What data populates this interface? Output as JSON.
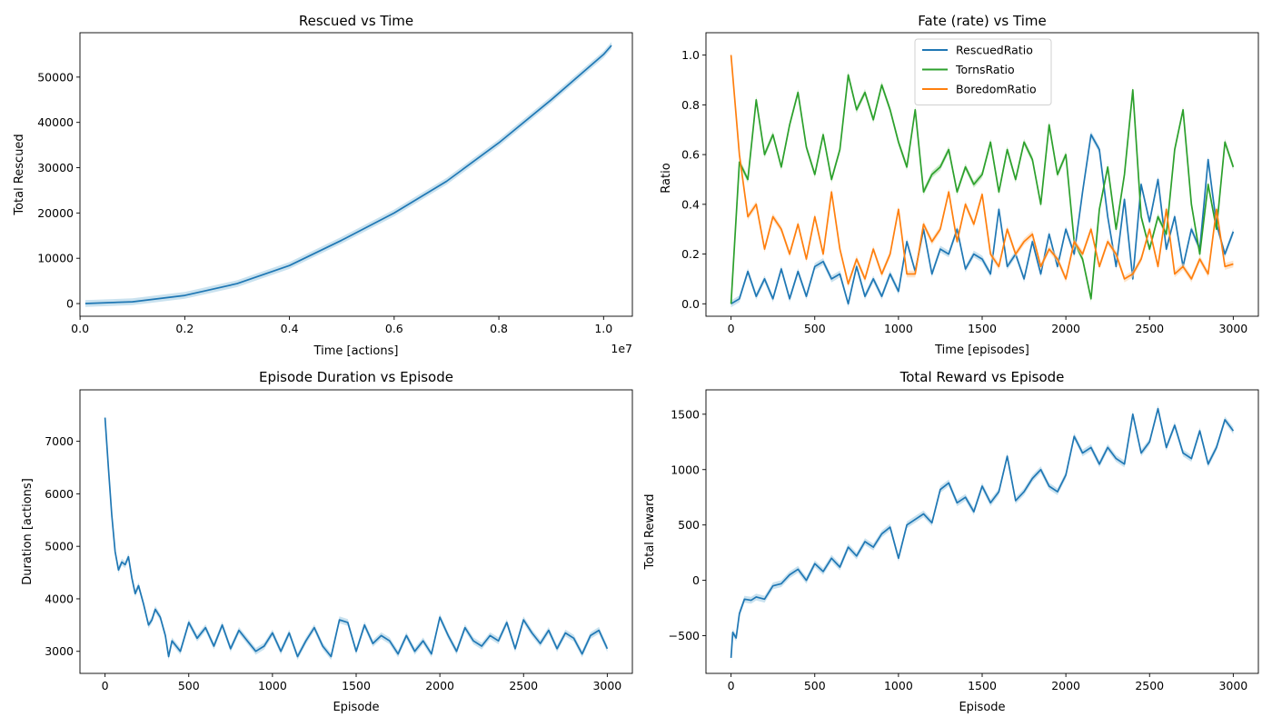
{
  "colors": {
    "blue": "#1f77b4",
    "green": "#2ca02c",
    "orange": "#ff7f0e",
    "band_blue": "#9ecae1",
    "band_green": "#a1d99b",
    "band_orange": "#fdd0a2"
  },
  "chart_data": [
    {
      "id": "rescued",
      "type": "line",
      "title": "Rescued vs Time",
      "xlabel": "Time [actions]",
      "ylabel": "Total Rescued",
      "x_offset_label": "1e7",
      "xlim": [
        -0.0002,
        1.055
      ],
      "ylim": [
        -2800,
        59800
      ],
      "xticks": [
        0,
        0.2,
        0.4,
        0.6,
        0.8,
        1.0
      ],
      "xtick_labels": [
        "0.0",
        "0.2",
        "0.4",
        "0.6",
        "0.8",
        "1.0"
      ],
      "yticks": [
        0,
        10000,
        20000,
        30000,
        40000,
        50000
      ],
      "ytick_labels": [
        "0",
        "10000",
        "20000",
        "30000",
        "40000",
        "50000"
      ],
      "series": [
        {
          "color": "blue",
          "x": [
            0.01,
            0.1,
            0.2,
            0.3,
            0.4,
            0.5,
            0.6,
            0.7,
            0.8,
            0.9,
            1.0,
            1.015
          ],
          "y": [
            0,
            400,
            1800,
            4400,
            8400,
            14000,
            20000,
            27000,
            35500,
            45000,
            55000,
            57000
          ]
        }
      ]
    },
    {
      "id": "fate",
      "type": "line",
      "title": "Fate (rate) vs Time",
      "xlabel": "Time [episodes]",
      "ylabel": "Ratio",
      "xlim": [
        -150,
        3150
      ],
      "ylim": [
        -0.05,
        1.09
      ],
      "xticks": [
        0,
        500,
        1000,
        1500,
        2000,
        2500,
        3000
      ],
      "xtick_labels": [
        "0",
        "500",
        "1000",
        "1500",
        "2000",
        "2500",
        "3000"
      ],
      "yticks": [
        0.0,
        0.2,
        0.4,
        0.6,
        0.8,
        1.0
      ],
      "ytick_labels": [
        "0.0",
        "0.2",
        "0.4",
        "0.6",
        "0.8",
        "1.0"
      ],
      "legend_position": "top-center",
      "series": [
        {
          "name": "RescuedRatio",
          "color": "blue",
          "x": [
            0,
            50,
            100,
            150,
            200,
            250,
            300,
            350,
            400,
            450,
            500,
            550,
            600,
            650,
            700,
            750,
            800,
            850,
            900,
            950,
            1000,
            1050,
            1100,
            1150,
            1200,
            1250,
            1300,
            1350,
            1400,
            1450,
            1500,
            1550,
            1600,
            1650,
            1700,
            1750,
            1800,
            1850,
            1900,
            1950,
            2000,
            2050,
            2100,
            2150,
            2200,
            2250,
            2300,
            2350,
            2400,
            2450,
            2500,
            2550,
            2600,
            2650,
            2700,
            2750,
            2800,
            2850,
            2900,
            2950,
            3000
          ],
          "y": [
            0.0,
            0.02,
            0.13,
            0.03,
            0.1,
            0.02,
            0.14,
            0.02,
            0.13,
            0.03,
            0.15,
            0.17,
            0.1,
            0.12,
            0.0,
            0.15,
            0.03,
            0.1,
            0.03,
            0.12,
            0.05,
            0.25,
            0.13,
            0.3,
            0.12,
            0.22,
            0.2,
            0.3,
            0.14,
            0.2,
            0.18,
            0.12,
            0.38,
            0.15,
            0.2,
            0.1,
            0.25,
            0.12,
            0.28,
            0.15,
            0.3,
            0.2,
            0.45,
            0.68,
            0.62,
            0.35,
            0.15,
            0.42,
            0.1,
            0.48,
            0.33,
            0.5,
            0.22,
            0.35,
            0.15,
            0.3,
            0.22,
            0.58,
            0.32,
            0.2,
            0.29
          ]
        },
        {
          "name": "TornsRatio",
          "color": "green",
          "x": [
            0,
            50,
            100,
            150,
            200,
            250,
            300,
            350,
            400,
            450,
            500,
            550,
            600,
            650,
            700,
            750,
            800,
            850,
            900,
            950,
            1000,
            1050,
            1100,
            1150,
            1200,
            1250,
            1300,
            1350,
            1400,
            1450,
            1500,
            1550,
            1600,
            1650,
            1700,
            1750,
            1800,
            1850,
            1900,
            1950,
            2000,
            2050,
            2100,
            2150,
            2200,
            2250,
            2300,
            2350,
            2400,
            2450,
            2500,
            2550,
            2600,
            2650,
            2700,
            2750,
            2800,
            2850,
            2900,
            2950,
            3000
          ],
          "y": [
            0.0,
            0.57,
            0.5,
            0.82,
            0.6,
            0.68,
            0.55,
            0.72,
            0.85,
            0.63,
            0.52,
            0.68,
            0.5,
            0.62,
            0.92,
            0.78,
            0.85,
            0.74,
            0.88,
            0.78,
            0.65,
            0.55,
            0.78,
            0.45,
            0.52,
            0.55,
            0.62,
            0.45,
            0.55,
            0.48,
            0.52,
            0.65,
            0.45,
            0.62,
            0.5,
            0.65,
            0.58,
            0.4,
            0.72,
            0.52,
            0.6,
            0.25,
            0.18,
            0.02,
            0.38,
            0.55,
            0.3,
            0.52,
            0.86,
            0.35,
            0.22,
            0.35,
            0.28,
            0.62,
            0.78,
            0.4,
            0.2,
            0.48,
            0.3,
            0.65,
            0.55
          ]
        },
        {
          "name": "BoredomRatio",
          "color": "orange",
          "x": [
            0,
            50,
            100,
            150,
            200,
            250,
            300,
            350,
            400,
            450,
            500,
            550,
            600,
            650,
            700,
            750,
            800,
            850,
            900,
            950,
            1000,
            1050,
            1100,
            1150,
            1200,
            1250,
            1300,
            1350,
            1400,
            1450,
            1500,
            1550,
            1600,
            1650,
            1700,
            1750,
            1800,
            1850,
            1900,
            1950,
            2000,
            2050,
            2100,
            2150,
            2200,
            2250,
            2300,
            2350,
            2400,
            2450,
            2500,
            2550,
            2600,
            2650,
            2700,
            2750,
            2800,
            2850,
            2900,
            2950,
            3000
          ],
          "y": [
            1.0,
            0.6,
            0.35,
            0.4,
            0.22,
            0.35,
            0.3,
            0.2,
            0.32,
            0.18,
            0.35,
            0.2,
            0.45,
            0.22,
            0.08,
            0.18,
            0.1,
            0.22,
            0.12,
            0.2,
            0.38,
            0.12,
            0.12,
            0.32,
            0.25,
            0.3,
            0.45,
            0.25,
            0.4,
            0.32,
            0.44,
            0.2,
            0.15,
            0.3,
            0.2,
            0.25,
            0.28,
            0.15,
            0.22,
            0.18,
            0.1,
            0.25,
            0.2,
            0.3,
            0.15,
            0.25,
            0.2,
            0.1,
            0.12,
            0.18,
            0.3,
            0.15,
            0.38,
            0.12,
            0.15,
            0.1,
            0.18,
            0.12,
            0.38,
            0.15,
            0.16
          ]
        }
      ]
    },
    {
      "id": "duration",
      "type": "line",
      "title": "Episode Duration vs Episode",
      "xlabel": "Episode",
      "ylabel": "Duration [actions]",
      "xlim": [
        -150,
        3150
      ],
      "ylim": [
        2580,
        7980
      ],
      "xticks": [
        0,
        500,
        1000,
        1500,
        2000,
        2500,
        3000
      ],
      "xtick_labels": [
        "0",
        "500",
        "1000",
        "1500",
        "2000",
        "2500",
        "3000"
      ],
      "yticks": [
        3000,
        4000,
        5000,
        6000,
        7000
      ],
      "ytick_labels": [
        "3000",
        "4000",
        "5000",
        "6000",
        "7000"
      ],
      "series": [
        {
          "color": "blue",
          "x": [
            0,
            20,
            40,
            60,
            80,
            100,
            120,
            140,
            160,
            180,
            200,
            230,
            260,
            280,
            300,
            330,
            360,
            380,
            400,
            450,
            500,
            550,
            600,
            650,
            700,
            750,
            800,
            850,
            900,
            950,
            1000,
            1050,
            1100,
            1150,
            1200,
            1250,
            1300,
            1350,
            1400,
            1450,
            1500,
            1550,
            1600,
            1650,
            1700,
            1750,
            1800,
            1850,
            1900,
            1950,
            2000,
            2050,
            2100,
            2150,
            2200,
            2250,
            2300,
            2350,
            2400,
            2450,
            2500,
            2550,
            2600,
            2650,
            2700,
            2750,
            2800,
            2850,
            2900,
            2950,
            3000
          ],
          "y": [
            7450,
            6500,
            5600,
            4900,
            4550,
            4700,
            4650,
            4800,
            4400,
            4100,
            4250,
            3900,
            3500,
            3600,
            3800,
            3650,
            3300,
            2900,
            3200,
            3000,
            3550,
            3250,
            3450,
            3100,
            3500,
            3050,
            3400,
            3200,
            3000,
            3100,
            3350,
            3000,
            3350,
            2900,
            3200,
            3450,
            3100,
            2900,
            3600,
            3550,
            3000,
            3500,
            3150,
            3300,
            3200,
            2950,
            3300,
            3000,
            3200,
            2950,
            3650,
            3300,
            3000,
            3450,
            3200,
            3100,
            3300,
            3200,
            3550,
            3050,
            3600,
            3350,
            3150,
            3400,
            3050,
            3350,
            3250,
            2950,
            3300,
            3400,
            3050
          ]
        }
      ]
    },
    {
      "id": "reward",
      "type": "line",
      "title": "Total Reward vs Episode",
      "xlabel": "Episode",
      "ylabel": "Total Reward",
      "xlim": [
        -150,
        3150
      ],
      "ylim": [
        -840,
        1720
      ],
      "xticks": [
        0,
        500,
        1000,
        1500,
        2000,
        2500,
        3000
      ],
      "xtick_labels": [
        "0",
        "500",
        "1000",
        "1500",
        "2000",
        "2500",
        "3000"
      ],
      "yticks": [
        -500,
        0,
        500,
        1000,
        1500
      ],
      "ytick_labels": [
        "−500",
        "0",
        "500",
        "1000",
        "1500"
      ],
      "series": [
        {
          "color": "blue",
          "x": [
            0,
            10,
            30,
            50,
            80,
            120,
            150,
            200,
            250,
            300,
            350,
            400,
            450,
            500,
            550,
            600,
            650,
            700,
            750,
            800,
            850,
            900,
            950,
            1000,
            1050,
            1100,
            1150,
            1200,
            1250,
            1300,
            1350,
            1400,
            1450,
            1500,
            1550,
            1600,
            1650,
            1700,
            1750,
            1800,
            1850,
            1900,
            1950,
            2000,
            2050,
            2100,
            2150,
            2200,
            2250,
            2300,
            2350,
            2400,
            2450,
            2500,
            2550,
            2600,
            2650,
            2700,
            2750,
            2800,
            2850,
            2900,
            2950,
            3000
          ],
          "y": [
            -700,
            -470,
            -520,
            -300,
            -170,
            -180,
            -150,
            -170,
            -50,
            -30,
            50,
            100,
            0,
            150,
            80,
            200,
            120,
            300,
            220,
            350,
            300,
            420,
            480,
            200,
            500,
            550,
            600,
            520,
            820,
            880,
            700,
            750,
            620,
            850,
            700,
            800,
            1120,
            720,
            800,
            920,
            1000,
            850,
            800,
            950,
            1300,
            1150,
            1200,
            1050,
            1200,
            1100,
            1050,
            1500,
            1150,
            1250,
            1550,
            1200,
            1400,
            1150,
            1100,
            1350,
            1050,
            1200,
            1450,
            1350
          ]
        }
      ]
    }
  ]
}
